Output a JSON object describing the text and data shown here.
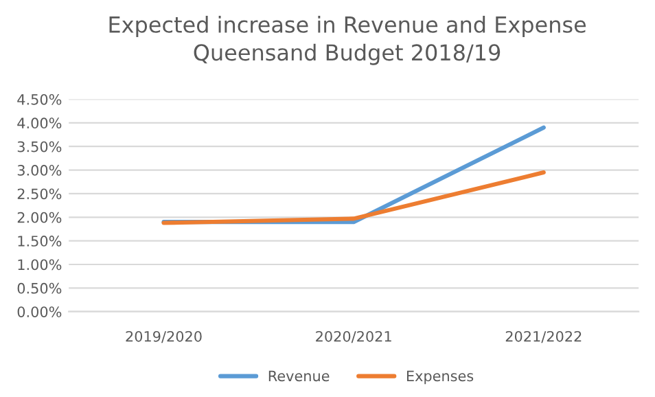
{
  "chart_data": {
    "type": "line",
    "title": "Expected increase in Revenue and Expense\nQueensand Budget 2018/19",
    "categories": [
      "2019/2020",
      "2020/2021",
      "2021/2022"
    ],
    "series": [
      {
        "name": "Revenue",
        "color": "#5b9bd5",
        "values": [
          1.9,
          1.9,
          3.9
        ]
      },
      {
        "name": "Expenses",
        "color": "#ed7d31",
        "values": [
          1.88,
          1.97,
          2.95
        ]
      }
    ],
    "ylim": [
      0,
      4.5
    ],
    "yticks": [
      {
        "value": 0,
        "label": "0.00%"
      },
      {
        "value": 0.5,
        "label": "0.50%"
      },
      {
        "value": 1,
        "label": "1.00%"
      },
      {
        "value": 1.5,
        "label": "1.50%"
      },
      {
        "value": 2,
        "label": "2.00%"
      },
      {
        "value": 2.5,
        "label": "2.50%"
      },
      {
        "value": 3,
        "label": "3.00%"
      },
      {
        "value": 3.5,
        "label": "3.50%"
      },
      {
        "value": 4,
        "label": "4.00%"
      },
      {
        "value": 4.5,
        "label": "4.50%"
      }
    ],
    "grid": "y",
    "legend": "bottom",
    "marker": "none",
    "line_style": "solid"
  }
}
